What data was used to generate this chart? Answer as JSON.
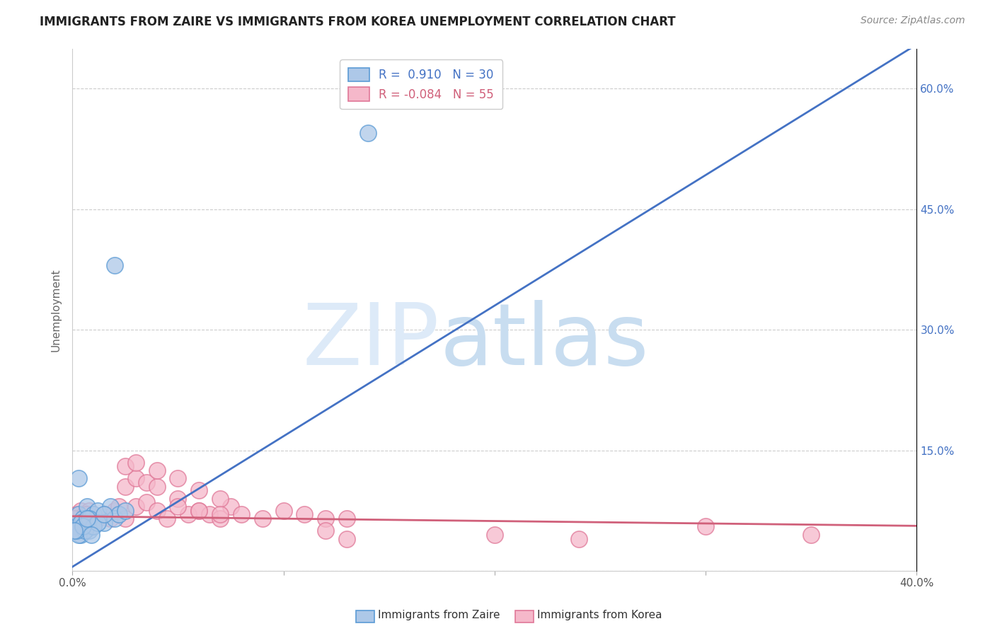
{
  "title": "IMMIGRANTS FROM ZAIRE VS IMMIGRANTS FROM KOREA UNEMPLOYMENT CORRELATION CHART",
  "source": "Source: ZipAtlas.com",
  "ylabel": "Unemployment",
  "y_ticks": [
    0.0,
    0.15,
    0.3,
    0.45,
    0.6
  ],
  "y_tick_labels": [
    "",
    "15.0%",
    "30.0%",
    "45.0%",
    "60.0%"
  ],
  "x_ticks": [
    0.0,
    0.1,
    0.2,
    0.3,
    0.4
  ],
  "x_tick_labels": [
    "0.0%",
    "",
    "",
    "",
    "40.0%"
  ],
  "zaire_R": 0.91,
  "zaire_N": 30,
  "korea_R": -0.084,
  "korea_N": 55,
  "zaire_color": "#adc8e8",
  "zaire_edge_color": "#5b9bd5",
  "korea_color": "#f5b8ca",
  "korea_edge_color": "#e07898",
  "zaire_line_color": "#4472c4",
  "korea_line_color": "#d0607a",
  "background_color": "#ffffff",
  "watermark_zip": "ZIP",
  "watermark_atlas": "atlas",
  "watermark_color_zip": "#ddeaf8",
  "watermark_color_atlas": "#c8ddf0",
  "title_fontsize": 12,
  "source_fontsize": 10,
  "xlim": [
    0.0,
    0.4
  ],
  "ylim": [
    0.0,
    0.65
  ],
  "zaire_line_x": [
    0.0,
    0.4
  ],
  "zaire_line_y": [
    0.005,
    0.655
  ],
  "korea_line_x": [
    0.0,
    0.4
  ],
  "korea_line_y": [
    0.068,
    0.056
  ],
  "zaire_points": [
    [
      0.002,
      0.055
    ],
    [
      0.003,
      0.07
    ],
    [
      0.004,
      0.045
    ],
    [
      0.005,
      0.065
    ],
    [
      0.006,
      0.06
    ],
    [
      0.007,
      0.08
    ],
    [
      0.008,
      0.05
    ],
    [
      0.009,
      0.055
    ],
    [
      0.01,
      0.07
    ],
    [
      0.012,
      0.075
    ],
    [
      0.015,
      0.06
    ],
    [
      0.018,
      0.08
    ],
    [
      0.02,
      0.065
    ],
    [
      0.022,
      0.07
    ],
    [
      0.025,
      0.075
    ],
    [
      0.003,
      0.045
    ],
    [
      0.004,
      0.06
    ],
    [
      0.006,
      0.05
    ],
    [
      0.008,
      0.065
    ],
    [
      0.01,
      0.055
    ],
    [
      0.012,
      0.06
    ],
    [
      0.015,
      0.07
    ],
    [
      0.002,
      0.05
    ],
    [
      0.005,
      0.055
    ],
    [
      0.007,
      0.065
    ],
    [
      0.009,
      0.045
    ],
    [
      0.02,
      0.38
    ],
    [
      0.003,
      0.115
    ],
    [
      0.14,
      0.545
    ],
    [
      0.001,
      0.05
    ]
  ],
  "korea_points": [
    [
      0.002,
      0.07
    ],
    [
      0.003,
      0.065
    ],
    [
      0.004,
      0.075
    ],
    [
      0.005,
      0.06
    ],
    [
      0.006,
      0.07
    ],
    [
      0.007,
      0.055
    ],
    [
      0.008,
      0.075
    ],
    [
      0.009,
      0.065
    ],
    [
      0.01,
      0.06
    ],
    [
      0.012,
      0.065
    ],
    [
      0.015,
      0.07
    ],
    [
      0.018,
      0.065
    ],
    [
      0.02,
      0.075
    ],
    [
      0.022,
      0.08
    ],
    [
      0.025,
      0.065
    ],
    [
      0.03,
      0.08
    ],
    [
      0.035,
      0.085
    ],
    [
      0.04,
      0.075
    ],
    [
      0.045,
      0.065
    ],
    [
      0.05,
      0.09
    ],
    [
      0.055,
      0.07
    ],
    [
      0.06,
      0.075
    ],
    [
      0.065,
      0.07
    ],
    [
      0.07,
      0.065
    ],
    [
      0.075,
      0.08
    ],
    [
      0.08,
      0.07
    ],
    [
      0.09,
      0.065
    ],
    [
      0.1,
      0.075
    ],
    [
      0.11,
      0.07
    ],
    [
      0.12,
      0.065
    ],
    [
      0.13,
      0.065
    ],
    [
      0.025,
      0.105
    ],
    [
      0.03,
      0.115
    ],
    [
      0.035,
      0.11
    ],
    [
      0.04,
      0.105
    ],
    [
      0.05,
      0.115
    ],
    [
      0.06,
      0.1
    ],
    [
      0.07,
      0.09
    ],
    [
      0.025,
      0.13
    ],
    [
      0.03,
      0.135
    ],
    [
      0.04,
      0.125
    ],
    [
      0.05,
      0.08
    ],
    [
      0.06,
      0.075
    ],
    [
      0.07,
      0.07
    ],
    [
      0.001,
      0.065
    ],
    [
      0.003,
      0.06
    ],
    [
      0.005,
      0.055
    ],
    [
      0.007,
      0.07
    ],
    [
      0.009,
      0.06
    ],
    [
      0.35,
      0.045
    ],
    [
      0.12,
      0.05
    ],
    [
      0.13,
      0.04
    ],
    [
      0.2,
      0.045
    ],
    [
      0.24,
      0.04
    ],
    [
      0.3,
      0.055
    ]
  ]
}
